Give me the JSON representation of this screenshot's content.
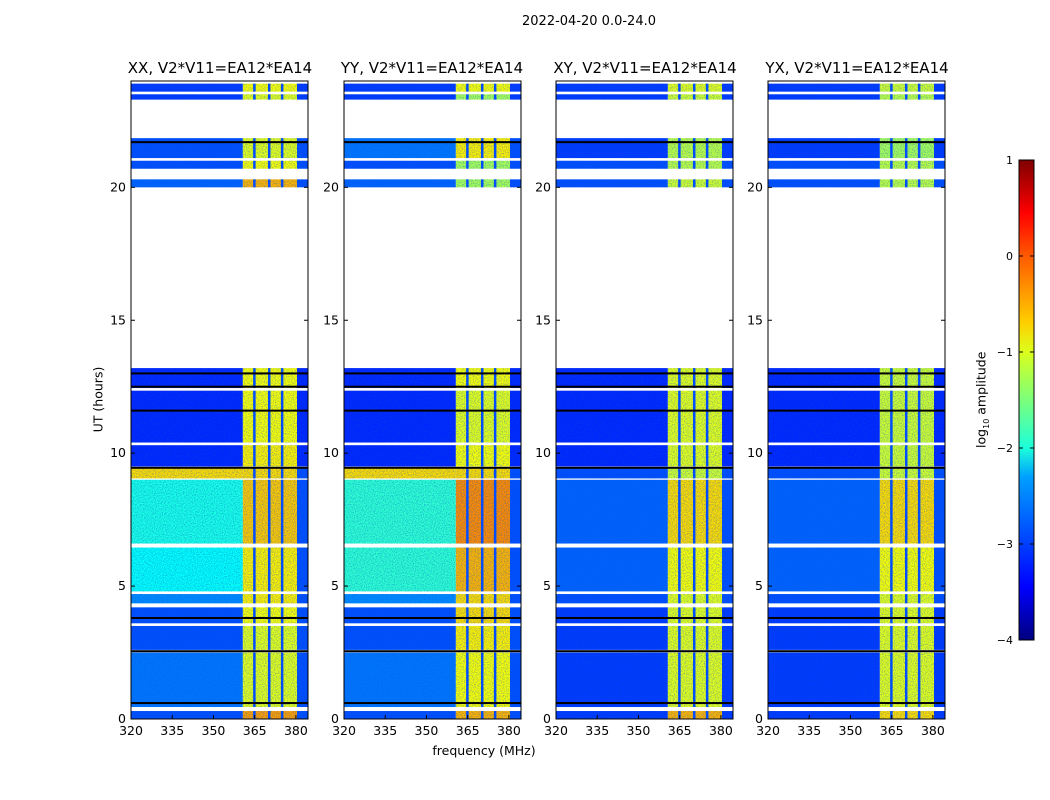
{
  "figure_title": "2022-04-20 0.0-24.0",
  "chart_data": {
    "type": "heatmap",
    "xlabel": "frequency (MHz)",
    "ylabel": "UT (hours)",
    "xlim": [
      320,
      384.4
    ],
    "ylim": [
      0,
      24
    ],
    "xticks": [
      320,
      335,
      350,
      365,
      380
    ],
    "yticks": [
      0,
      5,
      10,
      15,
      20
    ],
    "colorbar": {
      "label_main": "log",
      "label_sub": "10",
      "label_tail": " amplitude",
      "range": [
        -4,
        1
      ],
      "ticks": [
        "−4",
        "−3",
        "−2",
        "−1",
        "0",
        "1"
      ],
      "colormap": "jet"
    },
    "rfi_band_mhz": [
      360.7,
      380.4
    ],
    "dark_channels_mhz": [
      364.8,
      370.2,
      374.9
    ],
    "flagged_lines_hours": [
      0.6,
      2.55,
      3.8,
      9.45,
      11.6,
      12.5,
      13.0,
      21.7
    ],
    "panels": [
      {
        "title": "XX, V2*V11=EA12*EA14",
        "bands": [
          [
            0.0,
            0.3,
            -3.0,
            -0.4
          ],
          [
            0.45,
            2.5,
            -2.8,
            -1.0
          ],
          [
            2.6,
            3.5,
            -3.0,
            -1.0
          ],
          [
            3.6,
            4.2,
            -3.0,
            -0.9
          ],
          [
            4.35,
            4.7,
            -2.7,
            -0.8
          ],
          [
            4.8,
            6.45,
            -2.1,
            -0.8
          ],
          [
            6.6,
            9.0,
            -2.0,
            -0.6
          ],
          [
            9.05,
            9.45,
            -0.7,
            -0.7
          ],
          [
            9.5,
            10.3,
            -3.2,
            -0.8
          ],
          [
            10.4,
            12.35,
            -3.2,
            -0.9
          ],
          [
            12.45,
            13.2,
            -3.2,
            -0.9
          ],
          [
            20.0,
            20.3,
            -2.9,
            -0.5
          ],
          [
            20.7,
            21.0,
            -3.0,
            -0.9
          ],
          [
            21.1,
            21.85,
            -3.0,
            -1.0
          ],
          [
            23.3,
            23.5,
            -3.1,
            -1.0
          ],
          [
            23.6,
            23.9,
            -3.1,
            -0.9
          ]
        ]
      },
      {
        "title": "YY, V2*V11=EA12*EA14",
        "bands": [
          [
            0.0,
            0.3,
            -3.0,
            -0.5
          ],
          [
            0.45,
            2.5,
            -2.8,
            -0.9
          ],
          [
            2.6,
            3.5,
            -3.0,
            -0.8
          ],
          [
            3.6,
            4.2,
            -3.0,
            -0.7
          ],
          [
            4.35,
            4.7,
            -2.7,
            -0.7
          ],
          [
            4.8,
            6.45,
            -1.9,
            -0.5
          ],
          [
            6.6,
            9.0,
            -1.9,
            -0.3
          ],
          [
            9.05,
            9.45,
            -0.7,
            -0.7
          ],
          [
            9.5,
            10.3,
            -3.2,
            -0.9
          ],
          [
            10.4,
            12.35,
            -3.2,
            -1.0
          ],
          [
            12.45,
            13.2,
            -3.2,
            -0.9
          ],
          [
            20.0,
            20.3,
            -2.9,
            -1.3
          ],
          [
            20.7,
            21.0,
            -3.0,
            -1.3
          ],
          [
            21.1,
            21.85,
            -2.8,
            -0.8
          ],
          [
            23.3,
            23.5,
            -3.1,
            -1.3
          ],
          [
            23.6,
            23.9,
            -3.1,
            -0.9
          ]
        ]
      },
      {
        "title": "XY, V2*V11=EA12*EA14",
        "bands": [
          [
            0.0,
            0.3,
            -3.1,
            -0.5
          ],
          [
            0.45,
            2.5,
            -3.1,
            -1.0
          ],
          [
            2.6,
            3.5,
            -3.1,
            -1.0
          ],
          [
            3.6,
            4.2,
            -3.1,
            -1.0
          ],
          [
            4.35,
            4.7,
            -3.0,
            -1.0
          ],
          [
            4.8,
            6.45,
            -2.9,
            -0.9
          ],
          [
            6.6,
            9.0,
            -2.9,
            -0.7
          ],
          [
            9.05,
            9.45,
            -3.0,
            -1.1
          ],
          [
            9.5,
            10.3,
            -3.2,
            -1.0
          ],
          [
            10.4,
            12.35,
            -3.2,
            -1.0
          ],
          [
            12.45,
            13.2,
            -3.2,
            -1.0
          ],
          [
            20.0,
            20.3,
            -3.0,
            -1.1
          ],
          [
            20.7,
            21.0,
            -3.0,
            -1.2
          ],
          [
            21.1,
            21.85,
            -3.1,
            -1.2
          ],
          [
            23.3,
            23.5,
            -3.1,
            -1.1
          ],
          [
            23.6,
            23.9,
            -3.1,
            -1.0
          ]
        ]
      },
      {
        "title": "YX, V2*V11=EA12*EA14",
        "bands": [
          [
            0.0,
            0.3,
            -3.1,
            -0.7
          ],
          [
            0.45,
            2.5,
            -3.1,
            -1.0
          ],
          [
            2.6,
            3.5,
            -3.1,
            -1.0
          ],
          [
            3.6,
            4.2,
            -3.1,
            -1.0
          ],
          [
            4.35,
            4.7,
            -3.0,
            -1.0
          ],
          [
            4.8,
            6.45,
            -2.9,
            -0.9
          ],
          [
            6.6,
            9.0,
            -2.9,
            -0.7
          ],
          [
            9.05,
            9.45,
            -3.0,
            -1.1
          ],
          [
            9.5,
            10.3,
            -3.2,
            -1.1
          ],
          [
            10.4,
            12.35,
            -3.2,
            -1.1
          ],
          [
            12.45,
            13.2,
            -3.2,
            -1.1
          ],
          [
            20.0,
            20.3,
            -3.0,
            -1.2
          ],
          [
            20.7,
            21.0,
            -3.0,
            -1.2
          ],
          [
            21.1,
            21.85,
            -3.1,
            -1.3
          ],
          [
            23.3,
            23.5,
            -3.1,
            -1.2
          ],
          [
            23.6,
            23.9,
            -3.1,
            -1.1
          ]
        ]
      }
    ]
  }
}
